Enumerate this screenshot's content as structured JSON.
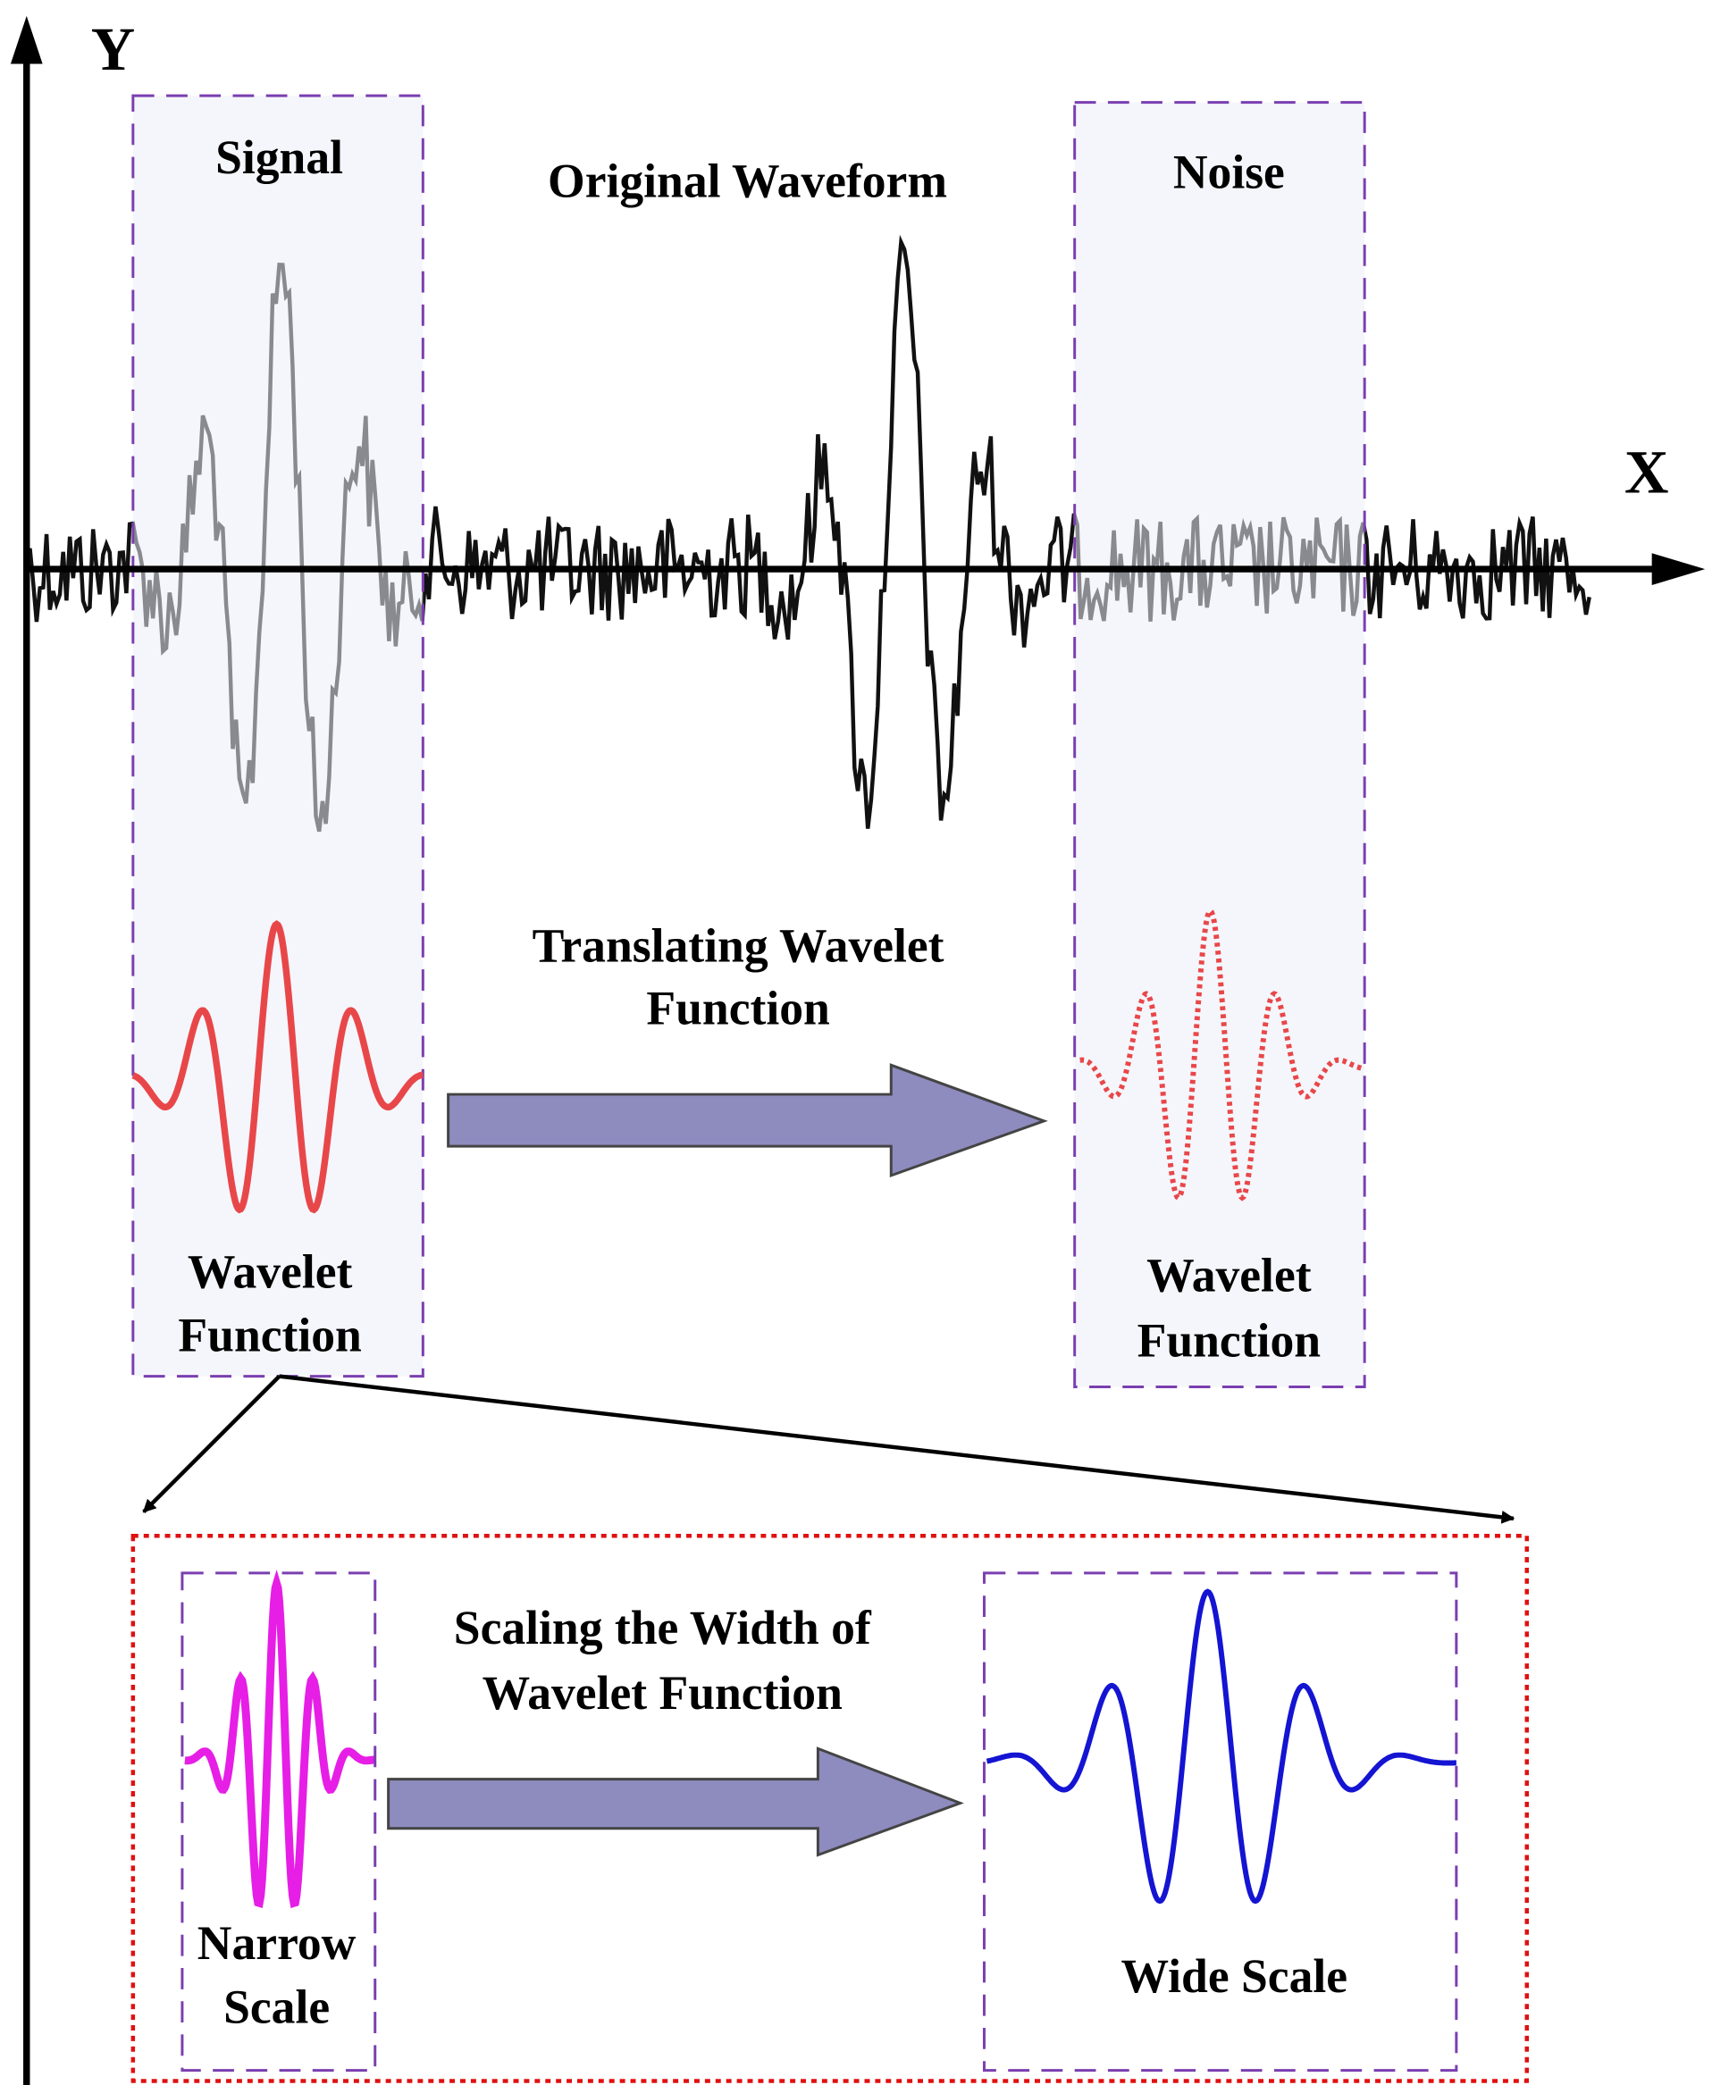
{
  "axes": {
    "y_label": "Y",
    "x_label": "X"
  },
  "waveform_title": "Original Waveform",
  "signal_box": {
    "title": "Signal",
    "caption": [
      "Wavelet",
      "Function"
    ]
  },
  "noise_box": {
    "title": "Noise",
    "caption": [
      "Wavelet",
      "Function"
    ]
  },
  "translation": {
    "label": [
      "Translating Wavelet",
      "Function"
    ]
  },
  "scaling": {
    "label": [
      "Scaling the Width of",
      "Wavelet Function"
    ],
    "narrow": {
      "caption": [
        "Narrow",
        "Scale"
      ]
    },
    "wide": {
      "caption": "Wide Scale"
    }
  }
}
